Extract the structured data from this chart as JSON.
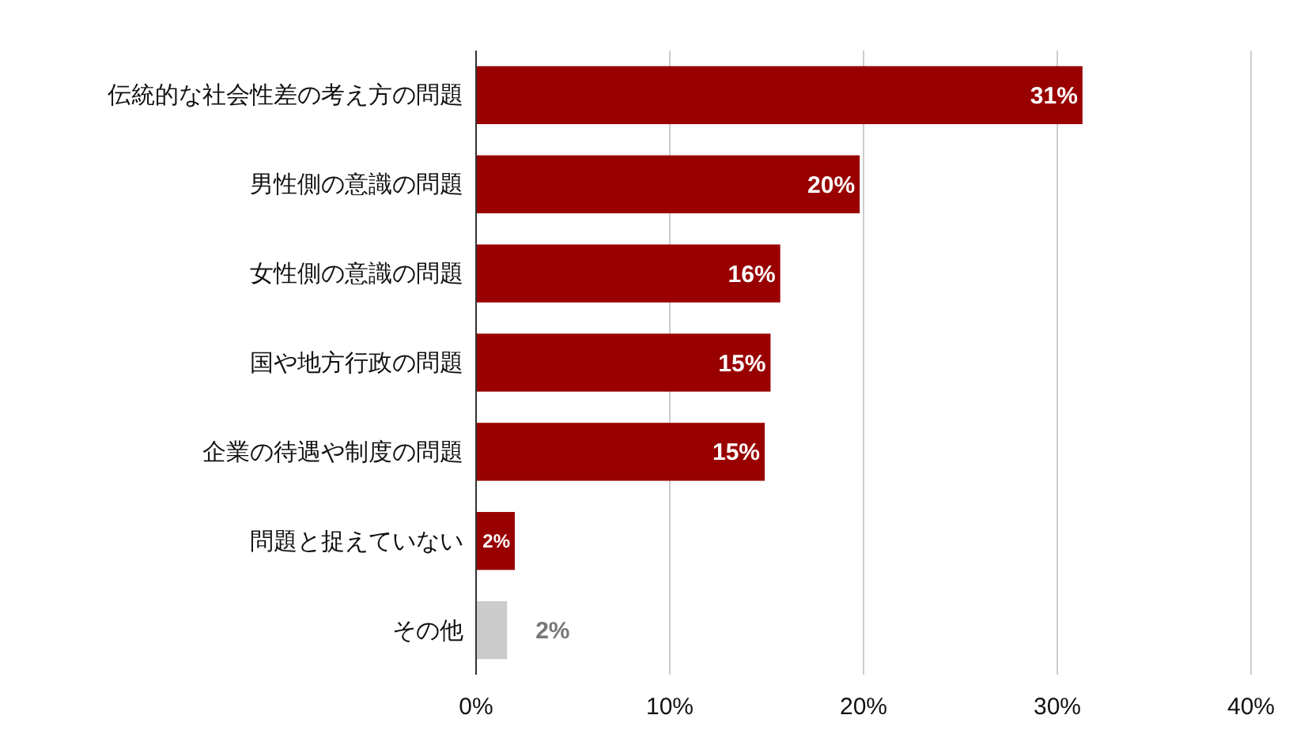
{
  "chart_data": {
    "type": "bar",
    "orientation": "horizontal",
    "categories": [
      "伝統的な社会性差の考え方の問題",
      "男性側の意識の問題",
      "女性側の意識の問題",
      "国や地方行政の問題",
      "企業の待遇や制度の問題",
      "問題と捉えていない",
      "その他"
    ],
    "values": [
      31.3,
      19.8,
      15.7,
      15.2,
      14.9,
      2.0,
      1.6
    ],
    "value_labels": [
      "31%",
      "20%",
      "16%",
      "15%",
      "15%",
      "2%",
      "2%"
    ],
    "colors": [
      "#990000",
      "#990000",
      "#990000",
      "#990000",
      "#990000",
      "#990000",
      "#cccccc"
    ],
    "xlim": [
      0,
      40
    ],
    "xticks": [
      {
        "value": 0,
        "label": "0%"
      },
      {
        "value": 10,
        "label": "10%"
      },
      {
        "value": 20,
        "label": "20%"
      },
      {
        "value": 30,
        "label": "30%"
      },
      {
        "value": 40,
        "label": "40%"
      }
    ],
    "grid": "x",
    "legend": false
  }
}
